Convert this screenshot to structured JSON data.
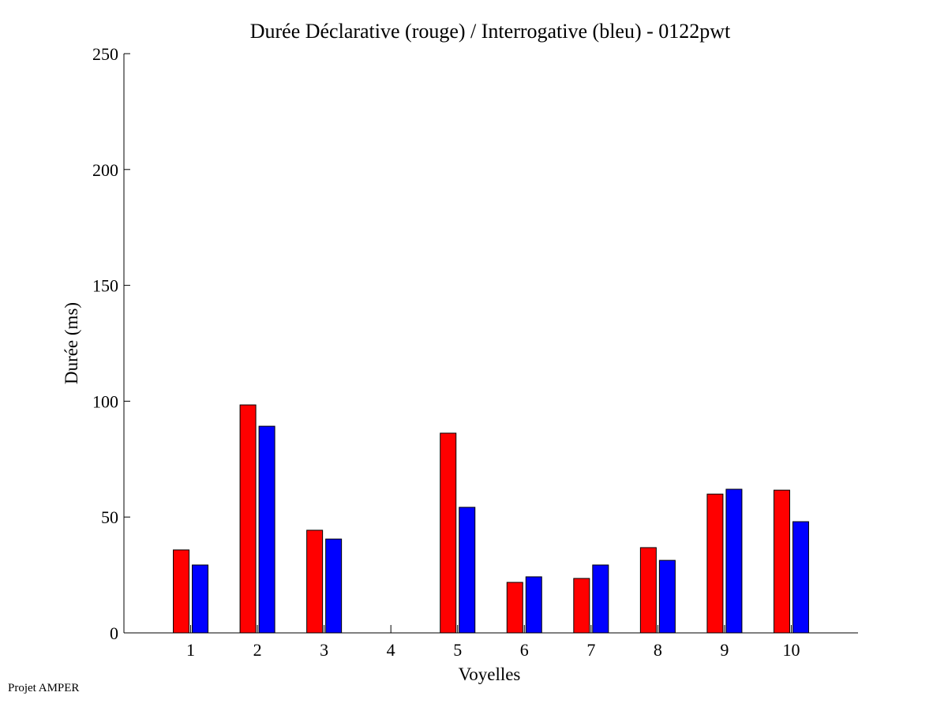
{
  "chart_data": {
    "type": "bar",
    "title": "Durée Déclarative (rouge) / Interrogative (bleu) - 0122pwt",
    "xlabel": "Voyelles",
    "ylabel": "Durée (ms)",
    "categories": [
      "1",
      "2",
      "3",
      "4",
      "5",
      "6",
      "7",
      "8",
      "9",
      "10"
    ],
    "series": [
      {
        "color": "#ff0000",
        "values": [
          35.8,
          98.4,
          44.3,
          0,
          86.2,
          21.8,
          23.5,
          36.8,
          59.9,
          61.6
        ]
      },
      {
        "color": "#0000ff",
        "values": [
          29.3,
          89.2,
          40.5,
          0,
          54.2,
          24.2,
          29.3,
          31.3,
          62.0,
          48.0
        ]
      }
    ],
    "ylim": [
      0,
      250
    ],
    "xlim": [
      0,
      11
    ],
    "yticks": [
      "0",
      "50",
      "100",
      "150",
      "200",
      "250"
    ],
    "grid": false
  },
  "footer": "Projet AMPER"
}
